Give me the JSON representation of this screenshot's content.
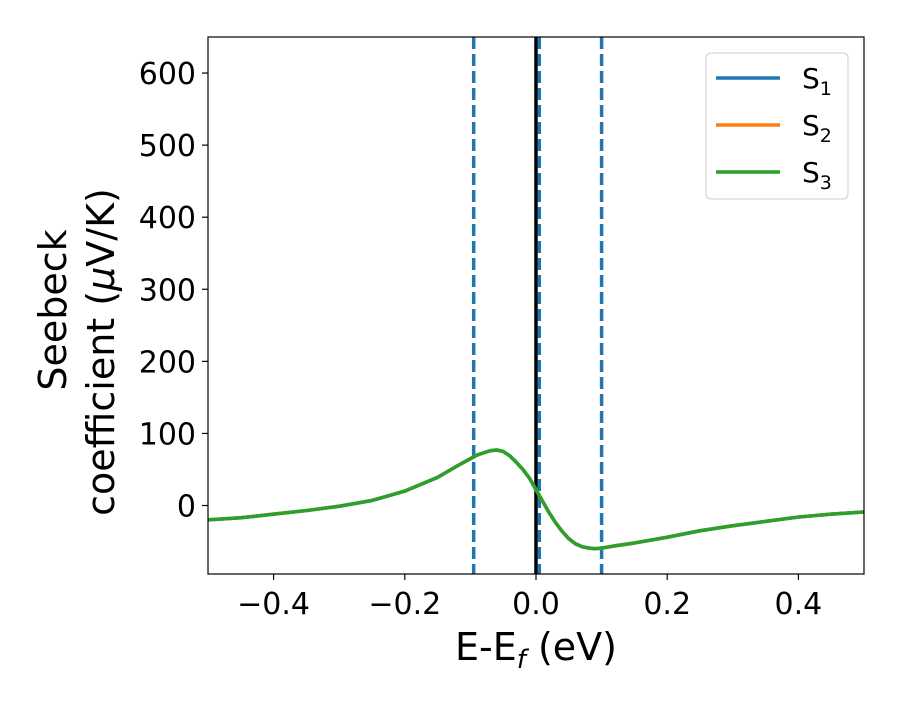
{
  "chart_data": {
    "type": "line",
    "title": "",
    "xlabel": {
      "base": "E-E",
      "sub": "f",
      "unit": " (eV)"
    },
    "ylabel": {
      "line1": "Seebeck",
      "line2": "coefficient  (",
      "mu": "μ",
      "unit": "V/K)"
    },
    "xlim": [
      -0.5,
      0.5
    ],
    "ylim": [
      -95,
      650
    ],
    "xticks": [
      -0.4,
      -0.2,
      0.0,
      0.2,
      0.4
    ],
    "xtick_labels": [
      "−0.4",
      "−0.2",
      "0.0",
      "0.2",
      "0.4"
    ],
    "yticks": [
      0,
      100,
      200,
      300,
      400,
      500,
      600
    ],
    "ytick_labels": [
      "0",
      "100",
      "200",
      "300",
      "400",
      "500",
      "600"
    ],
    "grid": false,
    "legend_position": "top-right",
    "vlines": [
      {
        "x": -0.095,
        "style": "dashed",
        "color": "#1f77b4"
      },
      {
        "x": 0.0,
        "style": "solid",
        "color": "#000000"
      },
      {
        "x": 0.005,
        "style": "dashed",
        "color": "#1f77b4"
      },
      {
        "x": 0.1,
        "style": "dashed",
        "color": "#1f77b4"
      }
    ],
    "x": [
      -0.5,
      -0.45,
      -0.4,
      -0.35,
      -0.3,
      -0.25,
      -0.2,
      -0.15,
      -0.12,
      -0.1,
      -0.09,
      -0.08,
      -0.07,
      -0.06,
      -0.05,
      -0.04,
      -0.03,
      -0.02,
      -0.01,
      0.0,
      0.01,
      0.02,
      0.03,
      0.04,
      0.05,
      0.06,
      0.07,
      0.08,
      0.09,
      0.1,
      0.12,
      0.15,
      0.2,
      0.25,
      0.3,
      0.35,
      0.4,
      0.45,
      0.5
    ],
    "series": [
      {
        "name": "S",
        "sub": "1",
        "color": "#1f77b4",
        "values": [
          -20,
          -17,
          -12,
          -7,
          -1,
          7,
          20,
          39,
          55,
          65,
          70,
          73,
          76,
          77,
          75,
          69,
          60,
          50,
          38,
          22,
          6,
          -10,
          -24,
          -36,
          -46,
          -53,
          -57,
          -59,
          -60,
          -59,
          -56,
          -52,
          -44,
          -35,
          -28,
          -22,
          -16,
          -12,
          -9
        ]
      },
      {
        "name": "S",
        "sub": "2",
        "color": "#ff7f0e",
        "values": [
          -20,
          -17,
          -12,
          -7,
          -1,
          7,
          20,
          39,
          55,
          65,
          70,
          73,
          76,
          77,
          75,
          69,
          60,
          50,
          38,
          22,
          6,
          -10,
          -24,
          -36,
          -46,
          -53,
          -57,
          -59,
          -60,
          -59,
          -56,
          -52,
          -44,
          -35,
          -28,
          -22,
          -16,
          -12,
          -9
        ]
      },
      {
        "name": "S",
        "sub": "3",
        "color": "#2ca02c",
        "values": [
          -20,
          -17,
          -12,
          -7,
          -1,
          7,
          20,
          39,
          55,
          65,
          70,
          73,
          76,
          77,
          75,
          69,
          60,
          50,
          38,
          22,
          6,
          -10,
          -24,
          -36,
          -46,
          -53,
          -57,
          -59,
          -60,
          -59,
          -56,
          -52,
          -44,
          -35,
          -28,
          -22,
          -16,
          -12,
          -9
        ]
      }
    ]
  }
}
